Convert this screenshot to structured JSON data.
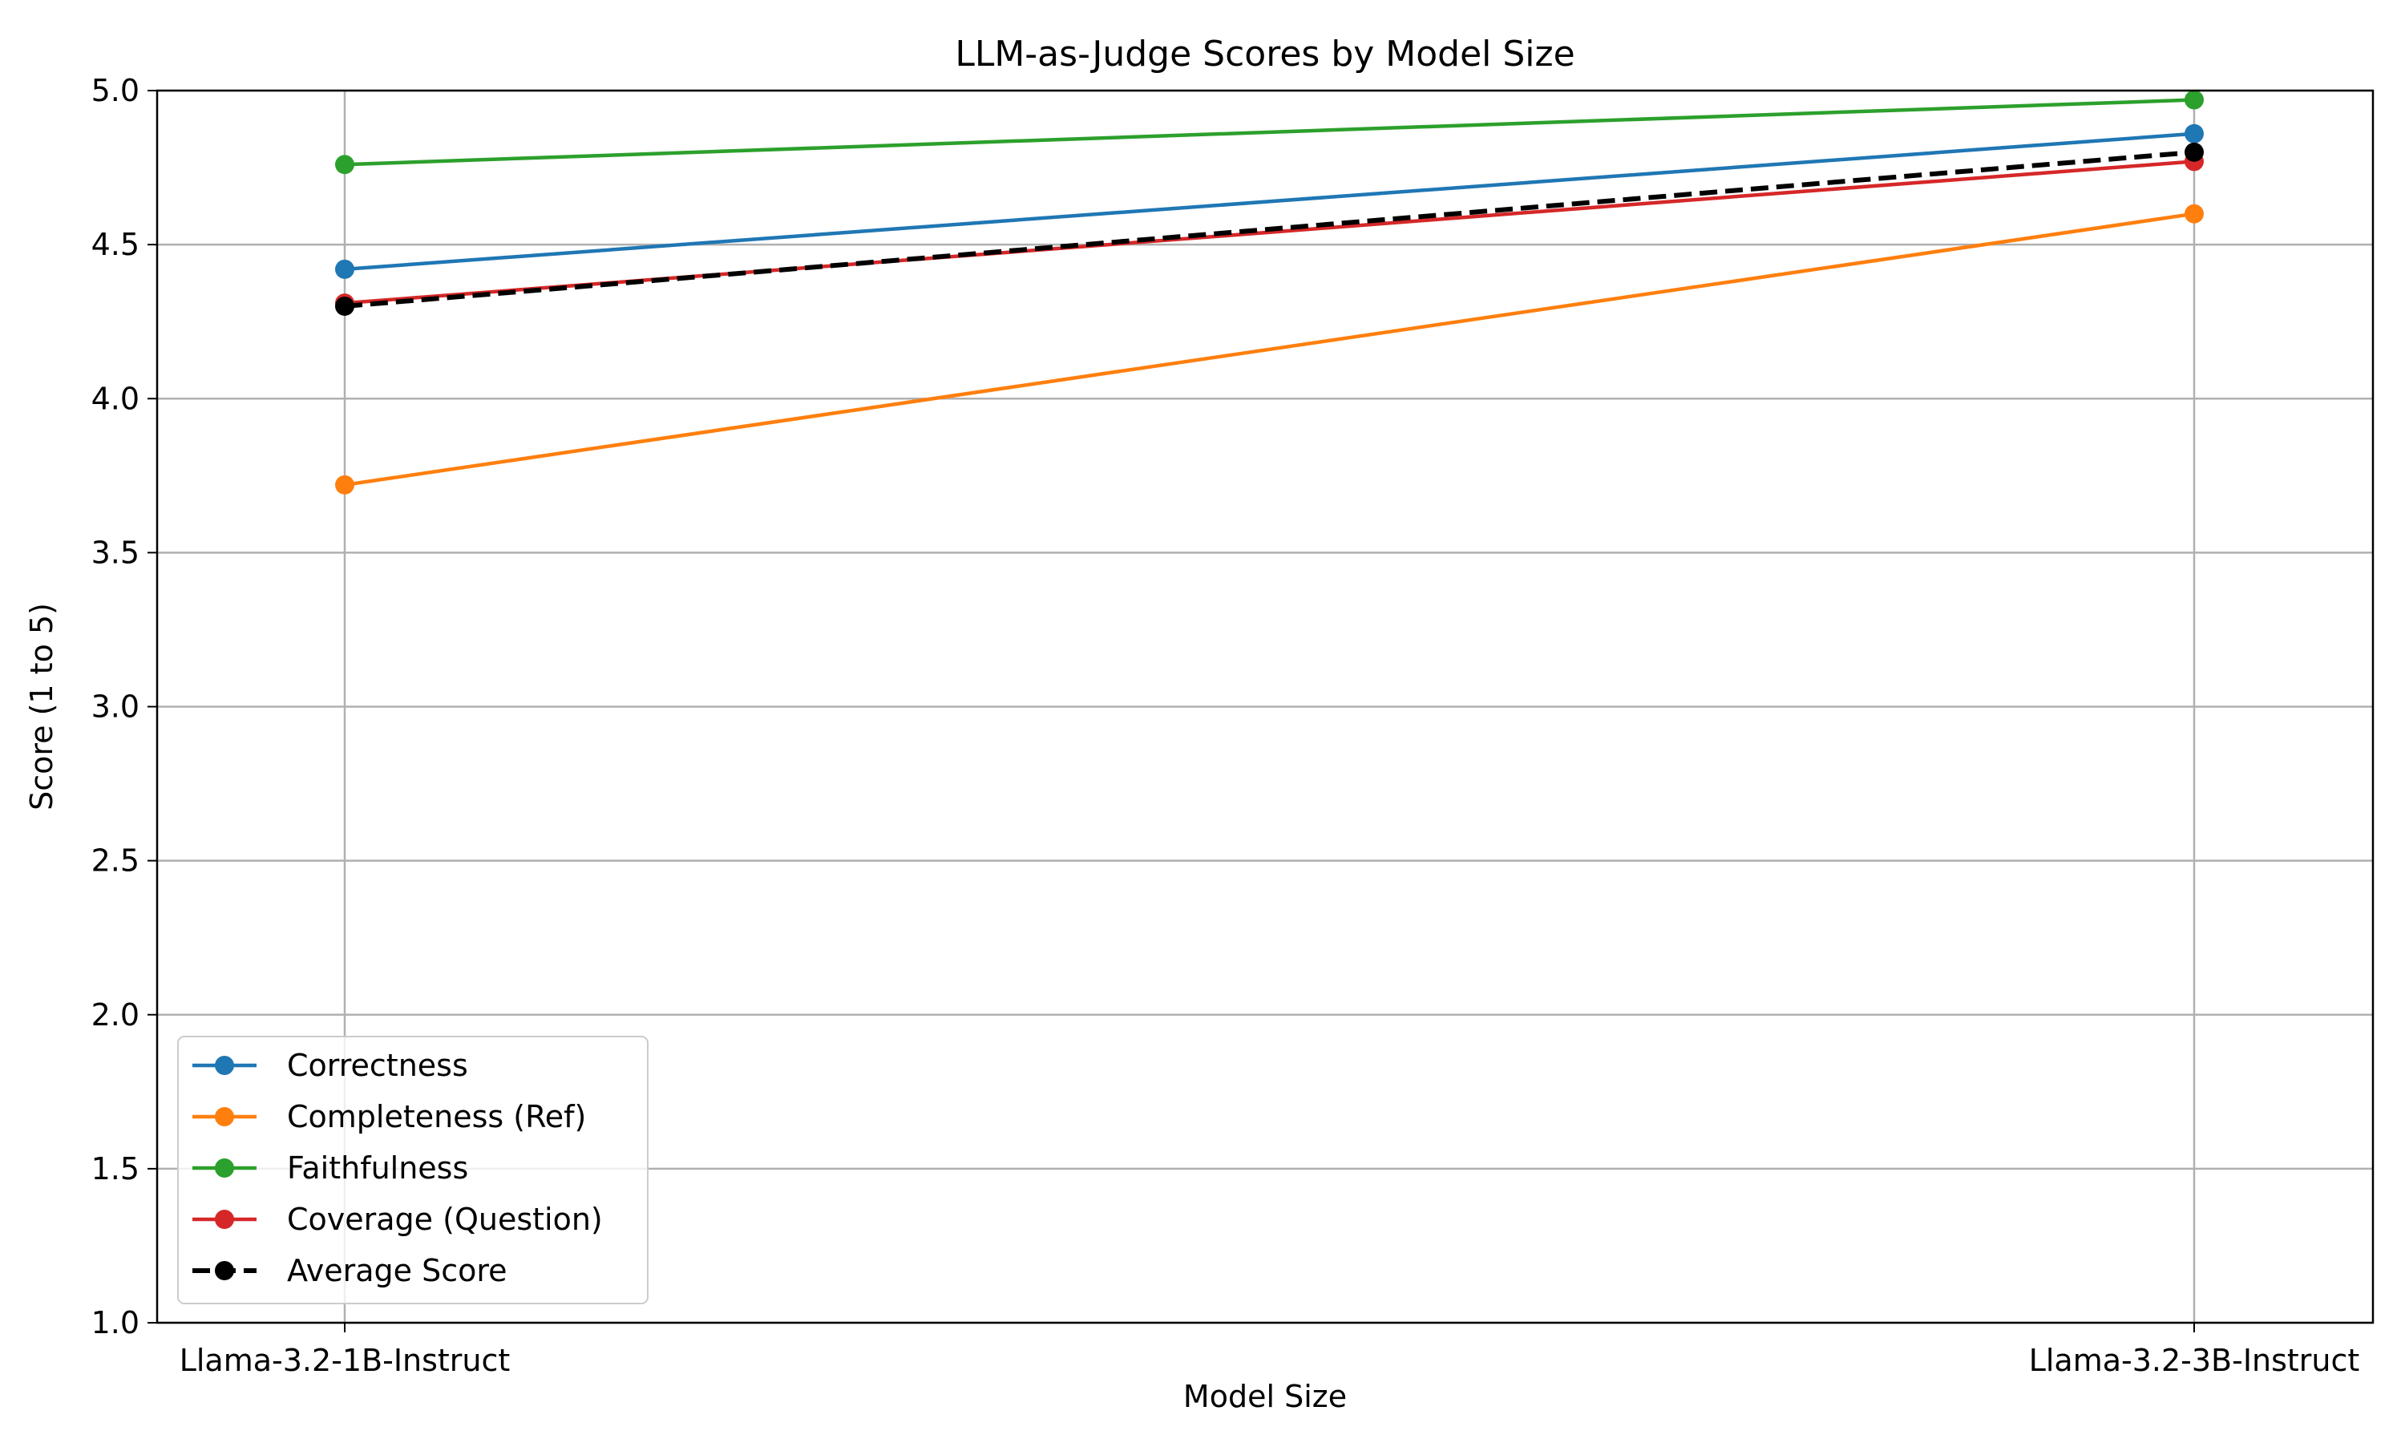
{
  "chart_data": {
    "type": "line",
    "title": "LLM-as-Judge Scores by Model Size",
    "xlabel": "Model Size",
    "ylabel": "Score (1 to 5)",
    "categories": [
      "Llama-3.2-1B-Instruct",
      "Llama-3.2-3B-Instruct"
    ],
    "ylim": [
      1.0,
      5.0
    ],
    "yticks": [
      "1.0",
      "1.5",
      "2.0",
      "2.5",
      "3.0",
      "3.5",
      "4.0",
      "4.5",
      "5.0"
    ],
    "grid": true,
    "legend_position": "lower-left",
    "series": [
      {
        "name": "Correctness",
        "values": [
          4.42,
          4.86
        ],
        "color": "#1f77b4",
        "style": "solid"
      },
      {
        "name": "Completeness (Ref)",
        "values": [
          3.72,
          4.6
        ],
        "color": "#ff7f0e",
        "style": "solid"
      },
      {
        "name": "Faithfulness",
        "values": [
          4.76,
          4.97
        ],
        "color": "#2ca02c",
        "style": "solid"
      },
      {
        "name": "Coverage (Question)",
        "values": [
          4.31,
          4.77
        ],
        "color": "#d62728",
        "style": "solid"
      },
      {
        "name": "Average Score",
        "values": [
          4.3,
          4.8
        ],
        "color": "#000000",
        "style": "dashed"
      }
    ]
  }
}
